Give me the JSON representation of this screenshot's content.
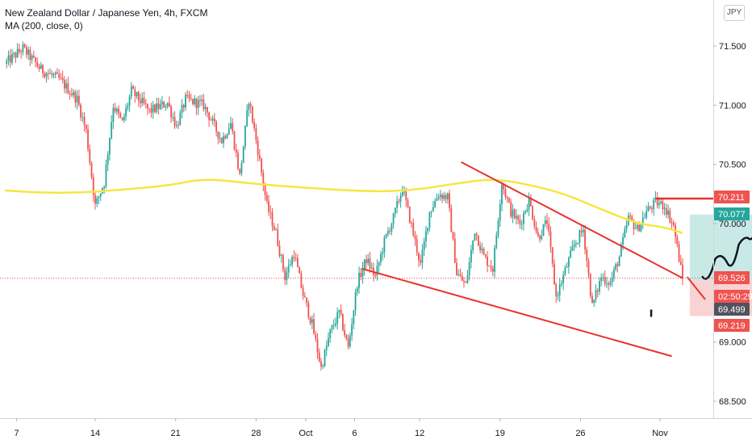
{
  "header": {
    "symbol_title": "New Zealand Dollar / Japanese Yen, 4h, FXCM",
    "indicator": "MA (200, close, 0)",
    "currency_badge": "JPY"
  },
  "colors": {
    "up": "#26a69a",
    "down": "#ef5350",
    "ma": "#f5e642",
    "trendline": "#e8332c",
    "target_zone": "#b2dfdb",
    "stop_zone": "#f8c8c8",
    "current_price": "#ef5350",
    "drawing": "#131722"
  },
  "chart_data": {
    "type": "candlestick",
    "timeframe": "4h",
    "ylim": [
      68.4,
      71.8
    ],
    "y_ticks": [
      "71.500",
      "71.000",
      "70.500",
      "70.000",
      "69.000",
      "68.500"
    ],
    "x_ticks": [
      "7",
      "14",
      "21",
      "28",
      "Oct",
      "6",
      "12",
      "19",
      "26",
      "Nov"
    ],
    "price_tags": [
      {
        "label": "70.211",
        "value": 70.211,
        "color": "#ef5350"
      },
      {
        "label": "70.077",
        "value": 70.077,
        "color": "#26a69a"
      },
      {
        "label": "69.526",
        "value": 69.526,
        "color": "#ef5350"
      },
      {
        "label": "02:50:29",
        "value": 69.412,
        "color": "#ef5350"
      },
      {
        "label": "69.499",
        "value": 69.499,
        "color": "#50535e"
      },
      {
        "label": "69.219",
        "value": 69.219,
        "color": "#ef5350"
      }
    ],
    "close_path": [
      [
        0,
        71.35
      ],
      [
        2,
        71.48
      ],
      [
        4,
        71.3
      ],
      [
        6,
        71.22
      ],
      [
        8,
        71.05
      ],
      [
        9,
        70.78
      ],
      [
        10,
        70.15
      ],
      [
        11,
        70.35
      ],
      [
        12,
        71.0
      ],
      [
        13,
        70.85
      ],
      [
        14,
        71.12
      ],
      [
        16,
        70.95
      ],
      [
        18,
        71.02
      ],
      [
        19,
        70.82
      ],
      [
        20,
        71.05
      ],
      [
        22,
        71.0
      ],
      [
        24,
        70.7
      ],
      [
        25,
        70.85
      ],
      [
        26,
        70.4
      ],
      [
        27,
        71.05
      ],
      [
        28,
        70.62
      ],
      [
        29,
        70.15
      ],
      [
        30,
        69.92
      ],
      [
        31,
        69.55
      ],
      [
        32,
        69.75
      ],
      [
        33,
        69.4
      ],
      [
        34,
        69.15
      ],
      [
        35,
        68.78
      ],
      [
        36,
        69.08
      ],
      [
        37,
        69.25
      ],
      [
        38,
        68.95
      ],
      [
        39,
        69.5
      ],
      [
        40,
        69.7
      ],
      [
        41,
        69.55
      ],
      [
        42,
        69.85
      ],
      [
        43,
        70.05
      ],
      [
        44,
        70.3
      ],
      [
        45,
        69.98
      ],
      [
        46,
        69.65
      ],
      [
        47,
        70.1
      ],
      [
        48,
        70.25
      ],
      [
        49,
        70.22
      ],
      [
        50,
        69.58
      ],
      [
        51,
        69.48
      ],
      [
        52,
        69.95
      ],
      [
        53,
        69.72
      ],
      [
        54,
        69.62
      ],
      [
        55,
        70.35
      ],
      [
        56,
        70.1
      ],
      [
        57,
        70.0
      ],
      [
        58,
        70.2
      ],
      [
        59,
        69.88
      ],
      [
        60,
        70.02
      ],
      [
        61,
        69.38
      ],
      [
        62,
        69.6
      ],
      [
        63,
        69.82
      ],
      [
        64,
        69.95
      ],
      [
        65,
        69.3
      ],
      [
        66,
        69.55
      ],
      [
        67,
        69.5
      ],
      [
        68,
        69.72
      ],
      [
        69,
        70.05
      ],
      [
        70,
        69.95
      ],
      [
        71,
        70.1
      ],
      [
        72,
        70.18
      ],
      [
        73,
        70.15
      ],
      [
        74,
        69.98
      ],
      [
        75,
        69.53
      ]
    ],
    "moving_average": [
      [
        0,
        70.28
      ],
      [
        4,
        70.26
      ],
      [
        8,
        70.26
      ],
      [
        12,
        70.28
      ],
      [
        18,
        70.32
      ],
      [
        22,
        70.38
      ],
      [
        26,
        70.35
      ],
      [
        30,
        70.32
      ],
      [
        34,
        70.3
      ],
      [
        38,
        70.28
      ],
      [
        42,
        70.27
      ],
      [
        46,
        70.29
      ],
      [
        50,
        70.34
      ],
      [
        54,
        70.38
      ],
      [
        58,
        70.33
      ],
      [
        62,
        70.25
      ],
      [
        66,
        70.12
      ],
      [
        70,
        70.0
      ],
      [
        73,
        69.97
      ],
      [
        75,
        69.92
      ]
    ],
    "annotations": {
      "resistance_line": {
        "value": 70.211,
        "x_from": 72.0,
        "x_to": 83.0
      },
      "upper_wedge_line": [
        [
          50.5,
          70.52
        ],
        [
          75.0,
          69.54
        ]
      ],
      "lower_wedge_line": [
        [
          39.5,
          69.62
        ],
        [
          73.8,
          68.88
        ]
      ],
      "lower_second_line": [
        [
          75.5,
          69.55
        ],
        [
          77.5,
          69.36
        ]
      ],
      "target_zone": {
        "x_from": 75.8,
        "x_to": 86.5,
        "top": 70.077,
        "bottom": 69.52
      },
      "stop_zone": {
        "x_from": 75.8,
        "x_to": 86.5,
        "top": 69.52,
        "bottom": 69.219
      },
      "projection_path": [
        [
          77.2,
          69.55
        ],
        [
          78.6,
          69.7
        ],
        [
          80.0,
          69.66
        ],
        [
          81.2,
          69.82
        ],
        [
          82.2,
          69.88
        ],
        [
          83.8,
          70.15
        ]
      ],
      "small_mark": {
        "x": 71.5,
        "y": 69.24
      }
    }
  }
}
